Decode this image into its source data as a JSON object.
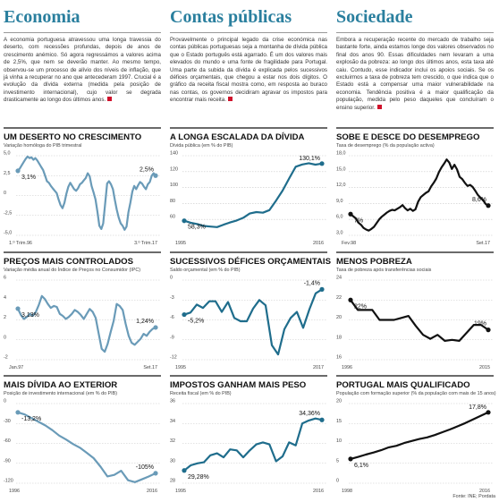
{
  "sections": [
    {
      "title": "Economia",
      "intro": "A economia portuguesa atravessou uma longa travessia do deserto, com recessões profundas, depois de anos de crescimento anémico. Só agora regressámos a valores acima de 2,5%, que nem se deverão manter. Ao mesmo tempo, observou-se um processo de alívio dos níveis de inflação, que já vinha a recuperar no ano que antecederam 1997. Crucial é a evolução da dívida externa (medida pela posição de investimento internacional), cujo valor se degrada drasticamente ao longo dos últimos anos."
    },
    {
      "title": "Contas públicas",
      "intro": "Provavelmente o principal legado da crise económica nas contas públicas portuguesas seja a montanha de dívida pública que o Estado português está agarrado. É um dos valores mais elevados do mundo e uma fonte de fragilidade para Portugal. Uma parte da subida da dívida é explicada pelos sucessivos défices orçamentais, que chegou a estar nos dois dígitos. O gráfico da receita fiscal mostra como, em resposta ao buraco nas contas, os governos decidiram agravar os impostos para encontrar mais receita."
    },
    {
      "title": "Sociedade",
      "intro": "Embora a recuperação recente do mercado de trabalho seja bastante forte, ainda estamos longe dos valores observados no final dos anos 90. Essas dificuldades nem levaram a uma explosão da pobreza: ao longo dos últimos anos, esta taxa até caiu. Contudo, esse indicador inclui os apoios sociais. Se os excluirmos a taxa de pobreza tem crescido, o que indica que o Estado está a compensar uma maior vulnerabilidade na economia. Tendência positiva é a maior qualificação da população, medida pelo peso daqueles que concluíram o ensino superior."
    }
  ],
  "chart_data": [
    {
      "type": "line",
      "title": "UM DESERTO NO CRESCIMENTO",
      "subtitle": "Variação homóloga do PIB trimestral",
      "ylim": [
        -5,
        5
      ],
      "yticks": [
        "5,0",
        "2,5",
        "0",
        "-2,5",
        "-5,0"
      ],
      "ytick_values": [
        5,
        2.5,
        0,
        -2.5,
        -5
      ],
      "xticks": [
        "1.º Trim.96",
        "3.º Trim.17"
      ],
      "annotations": [
        "3,1%",
        "2,5%"
      ],
      "annotation_values": [
        3.1,
        2.5
      ],
      "color": "#6a9bb8",
      "values": [
        3.1,
        3.4,
        3.8,
        4.2,
        4.6,
        4.9,
        4.7,
        4.8,
        4.5,
        4.7,
        4.4,
        4.0,
        3.6,
        3.2,
        2.5,
        1.8,
        1.6,
        1.2,
        0.9,
        0.6,
        0.3,
        -0.5,
        -1.2,
        -1.6,
        -0.9,
        0.2,
        1.1,
        1.6,
        1.2,
        0.8,
        0.6,
        0.9,
        1.4,
        1.6,
        1.9,
        2.2,
        2.8,
        2.4,
        1.2,
        0.4,
        -0.5,
        -2.0,
        -3.8,
        -4.2,
        -3.5,
        -1.0,
        1.5,
        1.8,
        1.4,
        0.8,
        -0.6,
        -1.8,
        -2.8,
        -3.5,
        -3.8,
        -4.3,
        -3.9,
        -2.1,
        -0.9,
        0.5,
        1.2,
        0.8,
        1.3,
        1.7,
        1.5,
        1.1,
        0.8,
        1.4,
        1.7,
        2.5,
        2.8,
        2.5
      ]
    },
    {
      "type": "line",
      "title": "A LONGA ESCALADA DA DÍVIDA",
      "subtitle": "Dívida pública (em % do PIB)",
      "ylim": [
        40,
        140
      ],
      "yticks": [
        "140",
        "120",
        "100",
        "80",
        "60"
      ],
      "ytick_values": [
        140,
        120,
        100,
        80,
        60
      ],
      "xticks": [
        "1995",
        "2016"
      ],
      "annotations": [
        "58,3%",
        "130,1%"
      ],
      "annotation_values": [
        58.3,
        130.1
      ],
      "color": "#1f6d8c",
      "values": [
        58.3,
        55.8,
        54.2,
        51.8,
        51.0,
        50.3,
        53.4,
        56.2,
        58.7,
        62.0,
        67.4,
        69.2,
        68.4,
        71.7,
        83.6,
        96.2,
        111.4,
        126.2,
        129.0,
        130.6,
        128.8,
        130.1
      ]
    },
    {
      "type": "line",
      "title": "SOBE E DESCE DO DESEMPREGO",
      "subtitle": "Taxa de desemprego (% da população activa)",
      "ylim": [
        3,
        18
      ],
      "yticks": [
        "18,0",
        "15,0",
        "12,0",
        "9,0",
        "6,0",
        "3,0"
      ],
      "ytick_values": [
        18,
        15,
        12,
        9,
        6,
        3
      ],
      "xticks": [
        "Fev.98",
        "Set.17"
      ],
      "annotations": [
        "7%",
        "8,6%"
      ],
      "annotation_values": [
        7,
        8.6
      ],
      "color": "#111111",
      "values": [
        7.0,
        6.6,
        6.2,
        5.4,
        5.0,
        4.4,
        4.1,
        3.9,
        4.2,
        4.6,
        5.3,
        6.0,
        6.5,
        6.9,
        7.3,
        7.6,
        7.8,
        7.7,
        8.0,
        8.3,
        8.7,
        8.1,
        7.7,
        8.0,
        7.6,
        7.9,
        9.3,
        10.2,
        10.6,
        11.0,
        11.3,
        12.2,
        12.9,
        13.7,
        14.9,
        15.8,
        16.5,
        17.3,
        16.7,
        15.5,
        16.3,
        15.4,
        14.0,
        13.6,
        12.9,
        12.3,
        12.5,
        12.1,
        11.4,
        10.6,
        10.1,
        9.6,
        8.9,
        8.6
      ]
    },
    {
      "type": "line",
      "title": "PREÇOS MAIS CONTROLADOS",
      "subtitle": "Variação média anual do Índice de Preços no Consumidor (IPC)",
      "ylim": [
        -2,
        6
      ],
      "yticks": [
        "6",
        "4",
        "2",
        "0",
        "-2"
      ],
      "ytick_values": [
        6,
        4,
        2,
        0,
        -2
      ],
      "xticks": [
        "Jan.97",
        "Set.17"
      ],
      "annotations": [
        "3,13%",
        "1,24%"
      ],
      "annotation_values": [
        3.13,
        1.24
      ],
      "color": "#6a9bb8",
      "values": [
        3.13,
        2.5,
        2.1,
        2.3,
        2.6,
        2.4,
        2.8,
        3.5,
        4.4,
        4.1,
        3.6,
        3.2,
        3.4,
        3.3,
        2.6,
        2.4,
        2.1,
        2.3,
        2.6,
        3.0,
        2.8,
        2.5,
        2.1,
        2.6,
        3.1,
        2.8,
        2.2,
        0.6,
        -0.9,
        -1.2,
        -0.4,
        0.8,
        1.9,
        3.6,
        3.4,
        3.0,
        1.6,
        0.4,
        -0.3,
        -0.5,
        -0.2,
        0.1,
        0.6,
        0.4,
        0.8,
        1.1,
        1.24
      ]
    },
    {
      "type": "line",
      "title": "SUCESSIVOS DÉFICES ORÇAMENTAIS",
      "subtitle": "Saldo orçamental (em % do PIB)",
      "ylim": [
        -12,
        0
      ],
      "yticks": [
        "0",
        "-3",
        "-6",
        "-9",
        "-12"
      ],
      "ytick_values": [
        0,
        -3,
        -6,
        -9,
        -12
      ],
      "xticks": [
        "1995",
        "2017"
      ],
      "annotations": [
        "-5,2%",
        "-1,4%"
      ],
      "annotation_values": [
        -5.2,
        -1.4
      ],
      "color": "#1f6d8c",
      "values": [
        -5.2,
        -4.9,
        -3.7,
        -4.2,
        -3.2,
        -3.2,
        -4.8,
        -3.3,
        -5.7,
        -6.2,
        -6.2,
        -4.3,
        -3.0,
        -3.8,
        -9.8,
        -11.2,
        -7.4,
        -5.7,
        -4.8,
        -7.2,
        -4.4,
        -2.0,
        -1.4
      ]
    },
    {
      "type": "line",
      "title": "MENOS POBREZA",
      "subtitle": "Taxa de pobreza após transferências sociais",
      "ylim": [
        16,
        24
      ],
      "yticks": [
        "24",
        "22",
        "20",
        "18",
        "16"
      ],
      "ytick_values": [
        24,
        22,
        20,
        18,
        16
      ],
      "xticks": [
        "1996",
        "2015"
      ],
      "annotations": [
        "22%",
        "19%"
      ],
      "annotation_values": [
        22,
        19
      ],
      "color": "#111111",
      "values": [
        22.0,
        21.0,
        21.0,
        21.0,
        20.0,
        20.0,
        20.0,
        20.2,
        20.4,
        19.4,
        18.5,
        18.1,
        18.5,
        17.9,
        18.0,
        17.9,
        18.7,
        19.5,
        19.5,
        19.0
      ]
    },
    {
      "type": "line",
      "title": "MAIS DÍVIDA AO EXTERIOR",
      "subtitle": "Posição de investimento internacional (em % do PIB)",
      "ylim": [
        -120,
        0
      ],
      "yticks": [
        "0",
        "-30",
        "-60",
        "-90",
        "-120"
      ],
      "ytick_values": [
        0,
        -30,
        -60,
        -90,
        -120
      ],
      "xticks": [
        "1996",
        "2016"
      ],
      "annotations": [
        "-13,2%",
        "-105%"
      ],
      "annotation_values": [
        -13.2,
        -105
      ],
      "color": "#6a9bb8",
      "values": [
        -13.2,
        -16.5,
        -22.0,
        -27.5,
        -33.0,
        -40.1,
        -48.3,
        -54.2,
        -61.0,
        -66.5,
        -74.2,
        -82.3,
        -95.1,
        -109.7,
        -107.5,
        -101.3,
        -115.5,
        -118.4,
        -114.2,
        -109.9,
        -105.0
      ]
    },
    {
      "type": "line",
      "title": "IMPOSTOS GANHAM MAIS PESO",
      "subtitle": "Receita fiscal (em % do PIB)",
      "ylim": [
        28,
        36
      ],
      "yticks": [
        "36",
        "34",
        "32",
        "30",
        "28"
      ],
      "ytick_values": [
        36,
        34,
        32,
        30,
        28
      ],
      "xticks": [
        "1995",
        "2016"
      ],
      "annotations": [
        "29,28%",
        "34,36%"
      ],
      "annotation_values": [
        29.28,
        34.36
      ],
      "color": "#1f6d8c",
      "values": [
        29.28,
        29.8,
        30.0,
        30.1,
        30.8,
        31.0,
        30.6,
        31.4,
        31.3,
        30.6,
        31.3,
        31.9,
        32.1,
        31.9,
        30.2,
        30.7,
        32.1,
        31.8,
        34.0,
        34.3,
        34.5,
        34.36
      ]
    },
    {
      "type": "line",
      "title": "PORTUGAL MAIS QUALIFICADO",
      "subtitle": "População com formação superior (% da população com mais de 15 anos)",
      "ylim": [
        0,
        20
      ],
      "yticks": [
        "20",
        "15",
        "10",
        "5",
        "0"
      ],
      "ytick_values": [
        20,
        15,
        10,
        5,
        0
      ],
      "xticks": [
        "1998",
        "2016"
      ],
      "annotations": [
        "6,1%",
        "17,8%"
      ],
      "annotation_values": [
        6.1,
        17.8
      ],
      "color": "#111111",
      "values": [
        6.1,
        6.6,
        7.2,
        7.7,
        8.3,
        9.0,
        9.4,
        10.1,
        10.6,
        11.1,
        11.5,
        12.1,
        12.8,
        13.5,
        14.3,
        15.1,
        16.0,
        16.9,
        17.8
      ]
    }
  ],
  "source": "Fonte: INE; Pordata"
}
